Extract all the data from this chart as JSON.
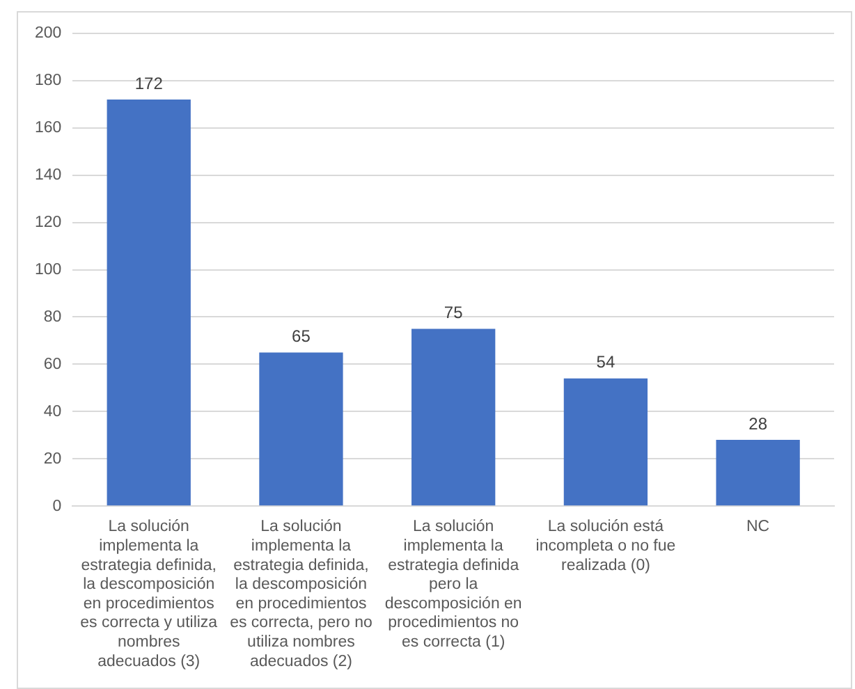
{
  "chart_data": {
    "type": "bar",
    "categories": [
      "La solución implementa la estrategia definida, la descomposición en procedimientos es correcta y utiliza nombres adecuados (3)",
      "La solución implementa la estrategia definida, la descomposición en procedimientos es correcta, pero no utiliza nombres adecuados (2)",
      "La solución implementa la estrategia definida pero la descomposición en procedimientos no es correcta (1)",
      "La solución está incompleta o no fue realizada (0)",
      "NC"
    ],
    "values": [
      172,
      65,
      75,
      54,
      28
    ],
    "color": "#4472c4",
    "ylim": [
      0,
      200
    ],
    "yticks": [
      0,
      20,
      40,
      60,
      80,
      100,
      120,
      140,
      160,
      180,
      200
    ],
    "grid": "y",
    "data_labels": true,
    "legend": false
  }
}
